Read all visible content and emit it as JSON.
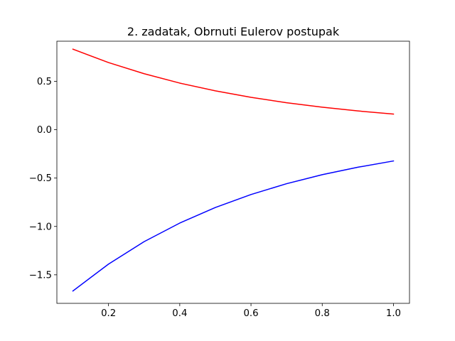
{
  "chart_data": {
    "type": "line",
    "title": "2. zadatak, Obrnuti Eulerov postupak",
    "xlabel": "",
    "ylabel": "",
    "xlim": [
      0.055,
      1.045
    ],
    "ylim": [
      -1.795,
      0.915
    ],
    "xticks": [
      0.2,
      0.4,
      0.6,
      0.8,
      1.0
    ],
    "xtick_labels": [
      "0.2",
      "0.4",
      "0.6",
      "0.8",
      "1.0"
    ],
    "yticks": [
      -1.5,
      -1.0,
      -0.5,
      0.0,
      0.5
    ],
    "ytick_labels": [
      "−1.5",
      "−1.0",
      "−0.5",
      "0.0",
      "0.5"
    ],
    "grid": false,
    "x": [
      0.1,
      0.2,
      0.3,
      0.4,
      0.5,
      0.6,
      0.7,
      0.8,
      0.9,
      1.0
    ],
    "series": [
      {
        "color": "#ff0000",
        "values": [
          0.833,
          0.694,
          0.579,
          0.482,
          0.402,
          0.335,
          0.279,
          0.233,
          0.194,
          0.162
        ]
      },
      {
        "color": "#0000ff",
        "values": [
          -1.667,
          -1.389,
          -1.157,
          -0.965,
          -0.804,
          -0.67,
          -0.558,
          -0.465,
          -0.388,
          -0.323
        ]
      }
    ]
  }
}
